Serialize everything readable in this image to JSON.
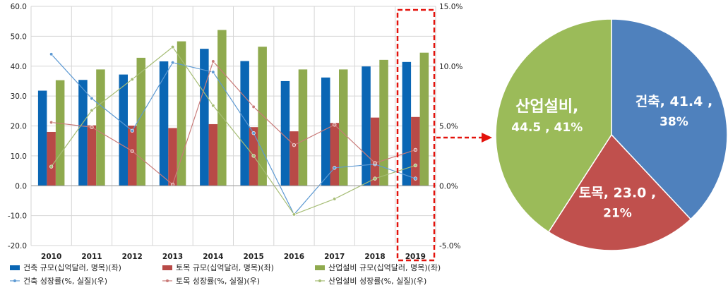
{
  "chart_data": [
    {
      "type": "bar",
      "categories": [
        "2010",
        "2011",
        "2012",
        "2013",
        "2014",
        "2015",
        "2016",
        "2017",
        "2018",
        "2019"
      ],
      "y_left": {
        "ylim": [
          -20,
          60
        ],
        "ticks": [
          "60.0",
          "50.0",
          "40.0",
          "30.0",
          "20.0",
          "10.0",
          "0.0",
          "-10.0",
          "-20.0"
        ]
      },
      "y_right": {
        "ylim": [
          -5,
          15
        ],
        "ticks": [
          "15.0%",
          "10.0%",
          "5.0%",
          "0.0%",
          "-5.0%"
        ]
      },
      "series": [
        {
          "name": "건축 규모(십억달러, 명목)(좌)",
          "kind": "bar",
          "axis": "left",
          "color": "#0a66b4",
          "values": [
            31.8,
            35.4,
            37.2,
            41.6,
            45.8,
            41.7,
            35.0,
            36.2,
            39.9,
            41.4
          ]
        },
        {
          "name": "토목 규모(십억달러, 명목)(좌)",
          "kind": "bar",
          "axis": "left",
          "color": "#b84a47",
          "values": [
            18.0,
            20.2,
            20.1,
            19.3,
            20.6,
            19.6,
            18.2,
            21.0,
            22.8,
            23.0
          ]
        },
        {
          "name": "산업설비 규모(십억달러, 명목)(좌)",
          "kind": "bar",
          "axis": "left",
          "color": "#8faa4e",
          "values": [
            35.3,
            38.9,
            42.8,
            48.3,
            52.1,
            46.5,
            38.9,
            38.9,
            42.1,
            44.5
          ]
        },
        {
          "name": "건축 성장률(%, 실질)(우)",
          "kind": "line",
          "axis": "right",
          "color": "#5e9ad3",
          "values": [
            11.0,
            7.3,
            4.6,
            10.3,
            9.5,
            4.4,
            -2.4,
            1.5,
            1.8,
            0.6
          ]
        },
        {
          "name": "토목 성장률(%, 실질)(우)",
          "kind": "line",
          "axis": "right",
          "color": "#c97b79",
          "values": [
            5.3,
            4.9,
            2.9,
            0.1,
            10.4,
            6.6,
            3.4,
            5.1,
            1.9,
            3.0
          ]
        },
        {
          "name": "산업설비 성장률(%, 실질)(우)",
          "kind": "line",
          "axis": "right",
          "color": "#a6bd75",
          "values": [
            1.6,
            6.3,
            8.9,
            11.6,
            6.7,
            2.5,
            -2.4,
            -1.1,
            0.6,
            1.7
          ]
        }
      ],
      "highlight_category": "2019"
    },
    {
      "type": "pie",
      "slices": [
        {
          "name": "건축",
          "value": 41.4,
          "percent": 38,
          "color": "#4f81bd",
          "label_line1": "건축, 41.4 ,",
          "label_line2": "38%"
        },
        {
          "name": "토목",
          "value": 23.0,
          "percent": 21,
          "color": "#c0504d",
          "label_line1": "토목, 23.0 ,",
          "label_line2": "21%"
        },
        {
          "name": "산업설비",
          "value": 44.5,
          "percent": 41,
          "color": "#9bbb59",
          "label_line1": "산업설비,",
          "label_line2": "44.5 , 41%"
        }
      ]
    }
  ]
}
